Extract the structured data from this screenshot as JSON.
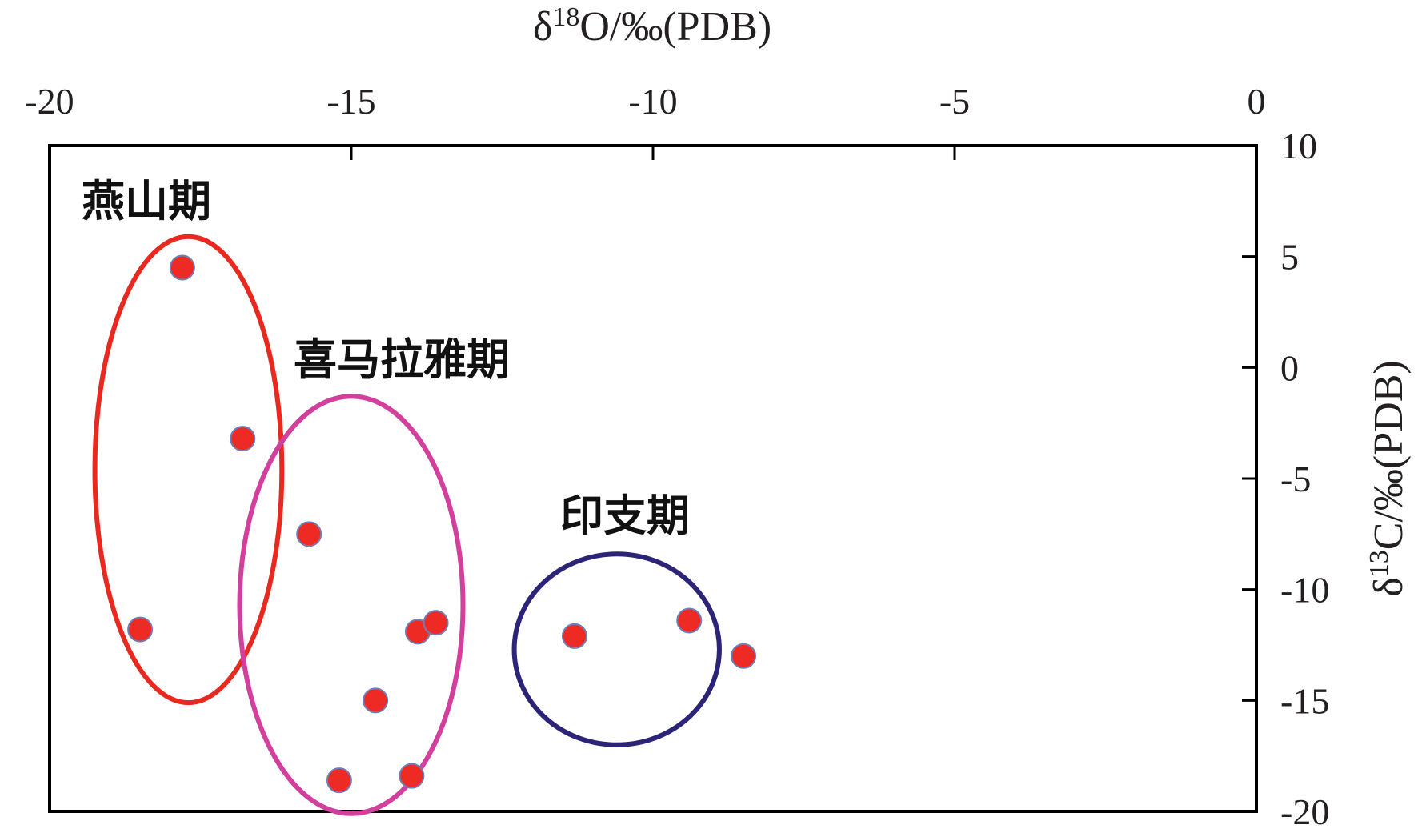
{
  "chart_data": {
    "type": "scatter",
    "title": "",
    "xlabel": {
      "prefix": "δ",
      "sup": "18",
      "rest": "O/‰(PDB)"
    },
    "ylabel": {
      "prefix": "δ",
      "sup": "13",
      "rest": "C/‰(PDB)"
    },
    "xlim": [
      -20,
      0
    ],
    "ylim": [
      -20,
      10
    ],
    "x_axis_position": "top",
    "y_axis_position": "right",
    "xticks": [
      -20,
      -15,
      -10,
      -5,
      0
    ],
    "yticks": [
      10,
      5,
      0,
      -5,
      -10,
      -15,
      -20
    ],
    "grid": false,
    "legend": "none",
    "point_color": "#ee2a24",
    "point_edge_color": "#6d7fb8",
    "groups": [
      {
        "label": "燕山期",
        "color": "#e8291f",
        "points": [
          [
            -17.8,
            4.5
          ],
          [
            -16.8,
            -3.2
          ],
          [
            -18.5,
            -11.8
          ]
        ],
        "ellipse": {
          "cx": -17.7,
          "cy": -4.6,
          "rx": 1.55,
          "ry": 10.5
        }
      },
      {
        "label": "喜马拉雅期",
        "color": "#d23f9c",
        "points": [
          [
            -15.7,
            -7.5
          ],
          [
            -13.9,
            -11.9
          ],
          [
            -13.6,
            -11.5
          ],
          [
            -14.6,
            -15.0
          ],
          [
            -15.2,
            -18.6
          ],
          [
            -14.0,
            -18.4
          ]
        ],
        "ellipse": {
          "cx": -15.0,
          "cy": -10.7,
          "rx": 1.85,
          "ry": 9.4
        }
      },
      {
        "label": "印支期",
        "color": "#2b2477",
        "points": [
          [
            -11.3,
            -12.1
          ],
          [
            -9.4,
            -11.4
          ],
          [
            -8.5,
            -13.0
          ]
        ],
        "ellipse": {
          "cx": -10.6,
          "cy": -12.7,
          "rx": 1.7,
          "ry": 4.3
        }
      }
    ]
  }
}
